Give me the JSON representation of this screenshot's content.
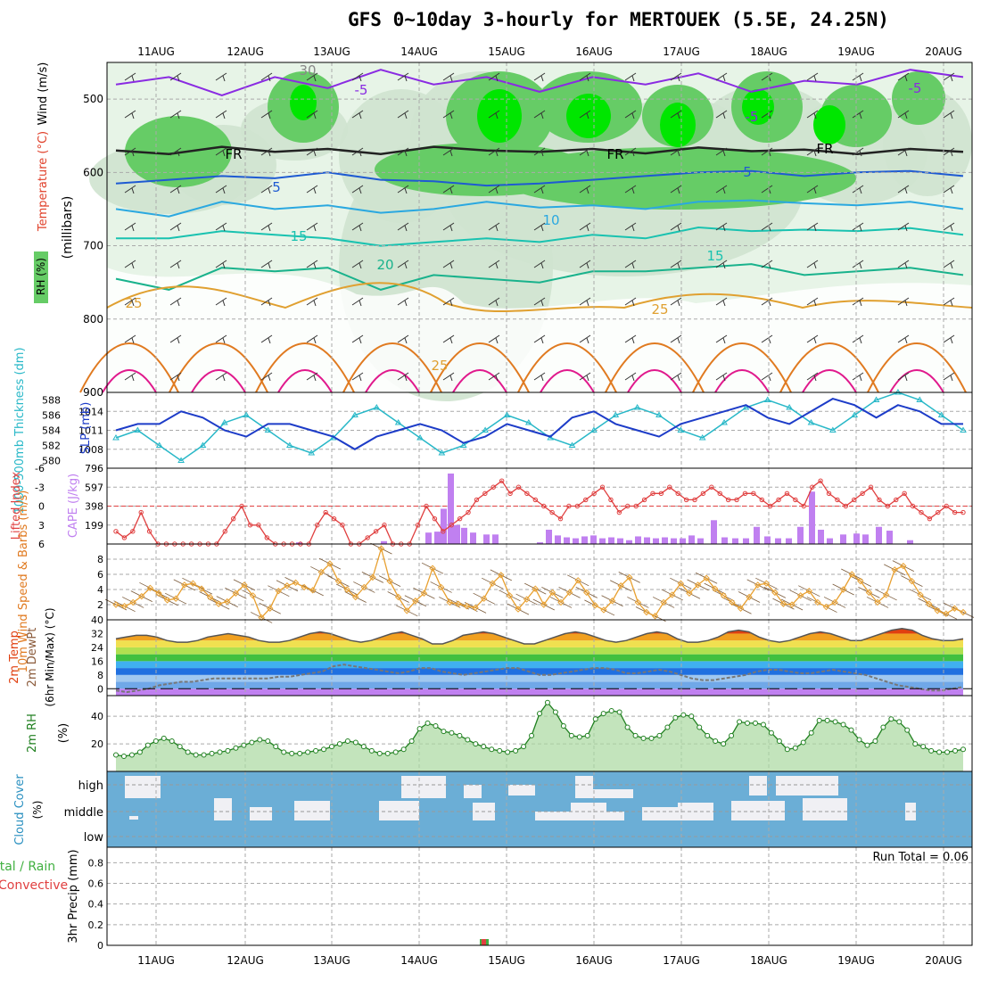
{
  "title": "GFS 0~10day 3-hourly for MERTOUEK (5.5E, 24.25N)",
  "dates": [
    "11AUG",
    "12AUG",
    "13AUG",
    "14AUG",
    "15AUG",
    "16AUG",
    "17AUG",
    "18AUG",
    "19AUG",
    "20AUG"
  ],
  "colors": {
    "grid": "#aaaaaa",
    "rh_light": "#e7f4e7",
    "rh_mid": "#cfe3cf",
    "rh_dark": "#9fbf9f",
    "rh_green": "#66cc66",
    "rh_bright": "#00e600",
    "cloud_bg": "#6baed6",
    "cloud_fill": "#f0f0f4"
  },
  "chart_data": [
    {
      "type": "contour",
      "panel": "upper-air",
      "ylabel_rh": "RH (%)",
      "ylabel_temp": "Temperature (°C)",
      "ylabel_wind": "Wind (m/s)",
      "ylabel_units": "(millibars)",
      "yticks": [
        500,
        600,
        700,
        800,
        900
      ],
      "ylim": [
        450,
        900
      ],
      "contour_labels": [
        "-5",
        "-5",
        "FR",
        "FR",
        "FR",
        "5",
        "5",
        "10",
        "15",
        "15",
        "20",
        "25",
        "25",
        "25",
        "30",
        "-5"
      ],
      "isotherms": [
        {
          "name": "-5",
          "level": [
            480,
            470,
            495,
            470,
            485,
            460,
            480,
            470,
            490,
            470,
            480,
            465,
            490,
            475,
            480,
            460,
            470
          ]
        },
        {
          "name": "FR",
          "level": [
            570,
            575,
            565,
            572,
            568,
            575,
            565,
            570,
            572,
            568,
            574,
            566,
            571,
            569,
            575,
            568,
            572
          ]
        },
        {
          "name": "5",
          "level": [
            615,
            610,
            605,
            608,
            600,
            610,
            612,
            618,
            615,
            610,
            605,
            600,
            598,
            605,
            600,
            598,
            605
          ]
        },
        {
          "name": "10",
          "level": [
            650,
            660,
            640,
            650,
            645,
            655,
            650,
            640,
            648,
            645,
            650,
            640,
            638,
            642,
            645,
            640,
            650
          ]
        },
        {
          "name": "15",
          "level": [
            690,
            690,
            680,
            685,
            690,
            700,
            695,
            690,
            695,
            685,
            690,
            675,
            680,
            678,
            680,
            676,
            685
          ]
        },
        {
          "name": "20",
          "level": [
            745,
            760,
            730,
            735,
            730,
            760,
            740,
            745,
            750,
            735,
            735,
            730,
            725,
            740,
            735,
            730,
            740
          ]
        }
      ]
    },
    {
      "type": "line",
      "panel": "thickness-slp",
      "ylabel_left": "1000-500mb Thickness (dm)",
      "ylabel_right": "SLP (mb)",
      "yticks_left": [
        580,
        582,
        584,
        586,
        588
      ],
      "yticks_right": [
        1008,
        1011,
        1014
      ],
      "series": [
        {
          "name": "Thickness",
          "values": [
            583,
            584,
            582,
            580,
            582,
            585,
            586,
            584,
            582,
            581,
            583,
            586,
            587,
            585,
            583,
            581,
            582,
            584,
            586,
            585,
            583,
            582,
            584,
            586,
            587,
            586,
            584,
            583,
            585,
            587,
            588,
            587,
            585,
            584,
            586,
            588,
            589,
            588,
            586,
            584
          ]
        },
        {
          "name": "SLP",
          "values": [
            1011,
            1012,
            1012,
            1014,
            1013,
            1011,
            1010,
            1012,
            1012,
            1011,
            1010,
            1008,
            1010,
            1011,
            1012,
            1011,
            1009,
            1010,
            1012,
            1011,
            1010,
            1013,
            1014,
            1012,
            1011,
            1010,
            1012,
            1013,
            1014,
            1015,
            1013,
            1012,
            1014,
            1016,
            1015,
            1013,
            1015,
            1014,
            1012,
            1012
          ]
        }
      ]
    },
    {
      "type": "bar-line",
      "panel": "cape-li",
      "ylabel_left": "Lifted Index",
      "ylabel_right": "CAPE (J/kg)",
      "yticks_left": [
        -6,
        -3,
        0,
        3,
        6
      ],
      "yticks_right": [
        199,
        398,
        597,
        796
      ],
      "cape": [
        0,
        0,
        0,
        0,
        0,
        0,
        0,
        0,
        0,
        0,
        0,
        0,
        0,
        0,
        0,
        0,
        0,
        0,
        0,
        0,
        0,
        0,
        0,
        0,
        0,
        0,
        0,
        0,
        0,
        0,
        0,
        0,
        0,
        0,
        0,
        0,
        0,
        0,
        0,
        0,
        0,
        0,
        0,
        0,
        0,
        0,
        0,
        0,
        0,
        0,
        0,
        0,
        0,
        0,
        0,
        15,
        0,
        0,
        0,
        0,
        0,
        0,
        0,
        25,
        0,
        0,
        0,
        0,
        0,
        0,
        0,
        0,
        0,
        0,
        0,
        0,
        0,
        0,
        0,
        0,
        0,
        0,
        0,
        0,
        0,
        0,
        0,
        0,
        0,
        0,
        0,
        0,
        0,
        0,
        0,
        0,
        0,
        0,
        0,
        0
      ],
      "lifted_index": [
        4,
        5,
        4,
        1,
        4,
        6,
        6,
        6,
        6,
        6,
        6,
        6,
        6,
        4,
        2,
        0,
        3,
        3,
        5,
        6,
        6,
        6,
        6,
        6,
        3,
        1,
        2,
        3,
        6,
        6,
        5,
        4,
        3,
        6,
        6,
        6,
        3,
        0,
        2,
        4,
        3,
        2,
        1,
        -1,
        -2,
        -3,
        -4,
        -2,
        -3,
        -2,
        -1,
        0,
        1,
        2,
        0,
        0,
        -1,
        -2,
        -3,
        -1,
        1,
        0,
        0,
        -1,
        -2,
        -2,
        -3,
        -2,
        -1,
        -1,
        -2,
        -3,
        -2,
        -1,
        -1,
        -2,
        -2,
        -1,
        0,
        -1,
        -2,
        -1,
        0,
        -3,
        -4,
        -2,
        -1,
        0,
        -1,
        -2,
        -3,
        -1,
        0,
        -1,
        -2,
        0,
        1,
        2,
        1,
        0,
        1,
        1
      ]
    },
    {
      "type": "line",
      "panel": "wind10m",
      "ylabel": "10m Wind Speed & Barbs (m/s)",
      "yticks": [
        2,
        4,
        6,
        8
      ],
      "values": [
        2.0,
        1.8,
        2.3,
        3.1,
        4.2,
        3.5,
        2.6,
        2.8,
        4.6,
        4.8,
        4.1,
        3.0,
        2.1,
        2.4,
        3.5,
        4.6,
        3.2,
        0.3,
        1.5,
        3.8,
        4.5,
        4.9,
        4.3,
        3.9,
        6.3,
        7.4,
        5.1,
        4.0,
        3.0,
        4.3,
        5.6,
        9.4,
        5.1,
        3.0,
        1.2,
        2.5,
        3.5,
        6.8,
        4.3,
        2.3,
        2.1,
        1.8,
        1.6,
        2.8,
        4.8,
        5.9,
        3.2,
        1.4,
        2.7,
        4.1,
        2.0,
        3.6,
        2.3,
        3.6,
        5.2,
        3.6,
        1.9,
        1.3,
        2.5,
        4.5,
        5.6,
        2.3,
        1.0,
        0.5,
        2.3,
        3.3,
        4.8,
        3.5,
        4.6,
        5.5,
        4.1,
        3.2,
        2.3,
        1.5,
        3.0,
        4.6,
        4.8,
        3.6,
        2.1,
        2.0,
        3.2,
        3.8,
        2.3,
        1.7,
        2.3,
        4.0,
        6.0,
        5.1,
        3.6,
        2.3,
        3.3,
        6.6,
        7.1,
        5.1,
        3.3,
        2.1,
        1.2,
        0.8,
        1.5,
        1.0
      ]
    },
    {
      "type": "area",
      "panel": "temp2m",
      "ylabel": "2m Temp 2m DewPt (6hr Min/Max) (°C)",
      "yticks": [
        0,
        8,
        16,
        24,
        32,
        40
      ],
      "temp": [
        29,
        30,
        31,
        31,
        30,
        28,
        27,
        27,
        28,
        30,
        31,
        32,
        31,
        30,
        28,
        27,
        27,
        28,
        30,
        32,
        33,
        32,
        30,
        28,
        27,
        28,
        30,
        32,
        33,
        31,
        29,
        26,
        26,
        28,
        31,
        32,
        33,
        32,
        30,
        28,
        26,
        26,
        28,
        30,
        32,
        33,
        32,
        30,
        28,
        27,
        28,
        30,
        32,
        33,
        32,
        29,
        27,
        27,
        28,
        30,
        33,
        34,
        33,
        30,
        28,
        27,
        28,
        30,
        32,
        33,
        32,
        30,
        28,
        28,
        30,
        32,
        34,
        35,
        34,
        31,
        29,
        28,
        28,
        29
      ],
      "dewpt": [
        -1,
        -2,
        -1,
        0,
        2,
        3,
        4,
        4,
        5,
        6,
        6,
        6,
        6,
        6,
        6,
        7,
        7,
        8,
        9,
        10,
        13,
        14,
        13,
        12,
        11,
        10,
        9,
        10,
        12,
        12,
        10,
        9,
        8,
        9,
        10,
        11,
        12,
        12,
        10,
        8,
        8,
        9,
        10,
        11,
        12,
        12,
        11,
        9,
        9,
        10,
        11,
        10,
        8,
        6,
        5,
        5,
        6,
        7,
        8,
        10,
        11,
        11,
        10,
        9,
        9,
        10,
        11,
        10,
        9,
        8,
        6,
        4,
        2,
        1,
        0,
        -1,
        -1,
        0,
        1
      ]
    },
    {
      "type": "area",
      "panel": "rh2m",
      "ylabel": "2m RH (%)",
      "yticks": [
        20,
        40
      ],
      "values": [
        12,
        11,
        12,
        14,
        19,
        22,
        24,
        22,
        18,
        14,
        12,
        12,
        13,
        14,
        15,
        17,
        19,
        21,
        23,
        22,
        18,
        14,
        13,
        13,
        14,
        15,
        16,
        18,
        20,
        22,
        21,
        18,
        15,
        13,
        13,
        14,
        16,
        22,
        31,
        35,
        33,
        29,
        28,
        26,
        23,
        20,
        18,
        16,
        15,
        14,
        15,
        18,
        26,
        42,
        50,
        43,
        33,
        26,
        25,
        26,
        38,
        42,
        44,
        43,
        32,
        26,
        24,
        24,
        26,
        32,
        39,
        41,
        40,
        32,
        26,
        22,
        20,
        26,
        36,
        35,
        35,
        34,
        28,
        22,
        16,
        17,
        21,
        28,
        37,
        37,
        36,
        34,
        30,
        23,
        19,
        22,
        32,
        38,
        36,
        30,
        20,
        18,
        15,
        14,
        14,
        15,
        16
      ]
    },
    {
      "type": "heatmap",
      "panel": "cloud",
      "ylabel": "Cloud Cover (%)",
      "rows": [
        "high",
        "middle",
        "low"
      ]
    },
    {
      "type": "bar",
      "panel": "precip",
      "ylabel_left": "Total / Rain",
      "ylabel_left2": "Convective",
      "ylabel": "3hr Precip (mm)",
      "yticks": [
        0,
        0.2,
        0.4,
        0.6,
        0.8
      ],
      "run_total_label": "Run Total = 0.06",
      "values": [
        0,
        0,
        0,
        0,
        0,
        0,
        0,
        0,
        0,
        0,
        0,
        0,
        0,
        0,
        0,
        0,
        0,
        0,
        0,
        0,
        0,
        0,
        0,
        0,
        0,
        0,
        0,
        0,
        0,
        0,
        0,
        0,
        0,
        0,
        0,
        0,
        0,
        0,
        0,
        0,
        0,
        0,
        0,
        0,
        0,
        0,
        0,
        0,
        0,
        0,
        0,
        0,
        0,
        0,
        0,
        0.02,
        0.04,
        0,
        0,
        0,
        0,
        0,
        0,
        0,
        0,
        0,
        0,
        0,
        0,
        0,
        0,
        0,
        0,
        0,
        0,
        0,
        0,
        0
      ]
    }
  ]
}
